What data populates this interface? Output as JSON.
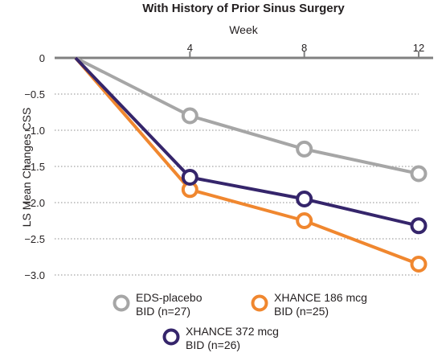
{
  "chart_data": {
    "type": "line",
    "title": "With History of Prior Sinus Surgery",
    "xlabel": "Week",
    "ylabel": "LS Mean Changes CSS",
    "x": [
      0,
      4,
      8,
      12
    ],
    "x_tick_labels": [
      "4",
      "8",
      "12"
    ],
    "xlim": [
      0,
      12
    ],
    "ylim": [
      -3.0,
      0
    ],
    "y_ticks": [
      0,
      -0.5,
      -1.0,
      -1.5,
      -2.0,
      -2.5,
      -3.0
    ],
    "y_tick_labels": [
      "0",
      "−0.5",
      "−1.0",
      "−1.5",
      "−2.0",
      "−2.5",
      "−3.0"
    ],
    "grid": "horizontal dotted",
    "legend_position": "bottom",
    "series": [
      {
        "name": "EDS-placebo",
        "name_line2": "BID (n=27)",
        "color": "#a6a6a6",
        "values": [
          0,
          -0.8,
          -1.26,
          -1.6
        ]
      },
      {
        "name": "XHANCE 186 mcg",
        "name_line2": "BID (n=25)",
        "color": "#f0872f",
        "values": [
          0,
          -1.82,
          -2.25,
          -2.85
        ]
      },
      {
        "name": "XHANCE 372 mcg",
        "name_line2": "BID (n=26)",
        "color": "#35256b",
        "values": [
          0,
          -1.65,
          -1.95,
          -2.32
        ]
      }
    ]
  }
}
